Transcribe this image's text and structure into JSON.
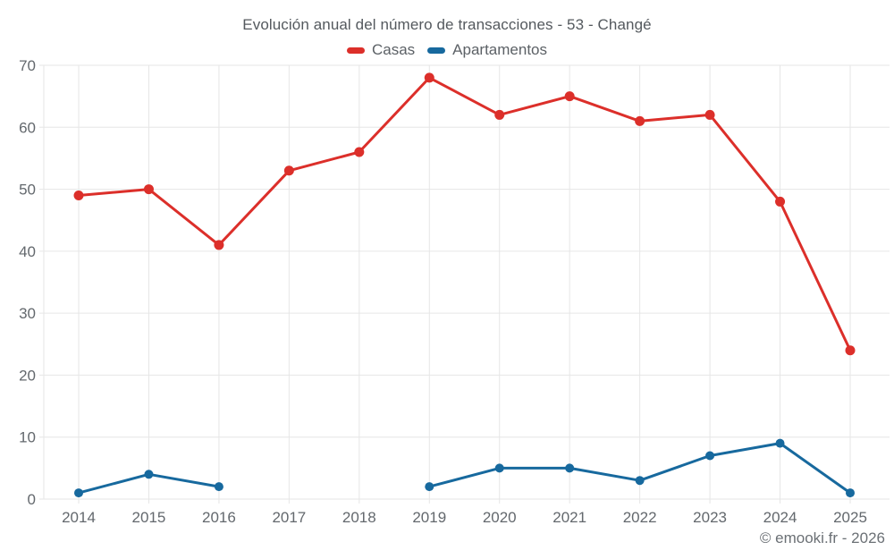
{
  "chart_data": {
    "type": "line",
    "title": "Evolución anual del número de transacciones - 53 - Changé",
    "categories": [
      "2014",
      "2015",
      "2016",
      "2017",
      "2018",
      "2019",
      "2020",
      "2021",
      "2022",
      "2023",
      "2024",
      "2025"
    ],
    "series": [
      {
        "name": "Casas",
        "color": "#dc2f2a",
        "values": [
          49,
          50,
          41,
          53,
          56,
          68,
          62,
          65,
          61,
          62,
          48,
          24
        ]
      },
      {
        "name": "Apartamentos",
        "color": "#17699e",
        "values": [
          1,
          4,
          2,
          null,
          null,
          2,
          5,
          5,
          3,
          7,
          9,
          1
        ]
      }
    ],
    "xlabel": "",
    "ylabel": "",
    "ylim": [
      0,
      70
    ],
    "ytick_step": 10,
    "grid": true,
    "legend_position": "top"
  },
  "footer": {
    "credit": "© emooki.fr - 2026"
  },
  "colors": {
    "gridline": "#e6e6e6",
    "tick_text": "#63686d"
  }
}
